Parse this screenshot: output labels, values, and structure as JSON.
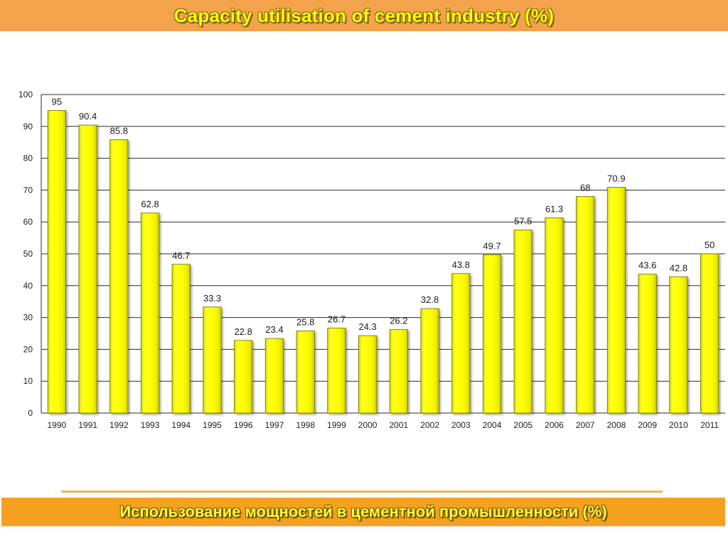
{
  "header": {
    "title": "Capacity utilisation of cement industry  (%)"
  },
  "footer": {
    "title": "Использование мощностей в цементной промышленности (%)"
  },
  "colors": {
    "title_bar": "#f3a34b",
    "footer_bar": "#f4a11f",
    "bar_fill": "#ffff00",
    "bar_stroke": "#6e6e00",
    "gridline": "#2b2b2b"
  },
  "chart_data": {
    "type": "bar",
    "title": "",
    "xlabel": "",
    "ylabel": "",
    "ylim": [
      0,
      100
    ],
    "yticks": [
      0,
      10,
      20,
      30,
      40,
      50,
      60,
      70,
      80,
      90,
      100
    ],
    "grid": true,
    "legend": "none",
    "categories": [
      "1990",
      "1991",
      "1992",
      "1993",
      "1994",
      "1995",
      "1996",
      "1997",
      "1998",
      "1999",
      "2000",
      "2001",
      "2002",
      "2003",
      "2004",
      "2005",
      "2006",
      "2007",
      "2008",
      "2009",
      "2010",
      "2011"
    ],
    "values": [
      95,
      90.4,
      85.8,
      62.8,
      46.7,
      33.3,
      22.8,
      23.4,
      25.8,
      26.7,
      24.3,
      26.2,
      32.8,
      43.8,
      49.7,
      57.5,
      61.3,
      68,
      70.9,
      43.6,
      42.8,
      50
    ],
    "data_labels": [
      "95",
      "90.4",
      "85.8",
      "62.8",
      "46.7",
      "33.3",
      "22.8",
      "23.4",
      "25.8",
      "26.7",
      "24.3",
      "26.2",
      "32.8",
      "43.8",
      "49.7",
      "57.5",
      "61.3",
      "68",
      "70.9",
      "43.6",
      "42.8",
      "50"
    ]
  }
}
